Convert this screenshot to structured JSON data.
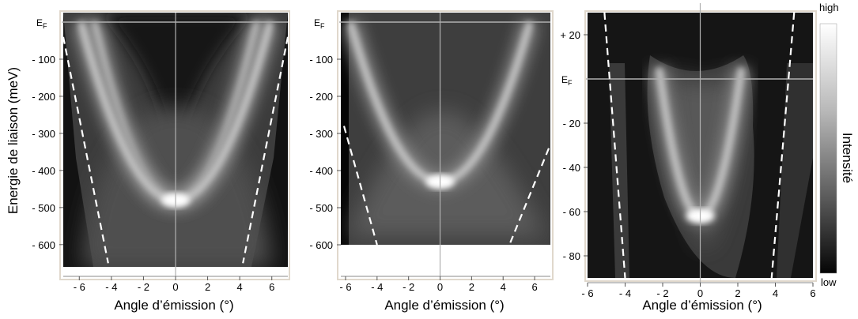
{
  "chart_data": [
    {
      "type": "heatmap",
      "title": "",
      "xlabel": "Angle d’émission (°)",
      "ylabel": "Energie de liaison (meV)",
      "xlim": [
        -7,
        7
      ],
      "ylim": [
        -660,
        0
      ],
      "x_ticks": [
        "- 6",
        "- 4",
        "- 2",
        "0",
        "2",
        "4",
        "6"
      ],
      "x_tick_values": [
        -6,
        -4,
        -2,
        0,
        2,
        4,
        6
      ],
      "y_ticks": [
        "- 100",
        "- 200",
        "- 300",
        "- 400",
        "- 500",
        "- 600"
      ],
      "y_tick_values": [
        -100,
        -200,
        -300,
        -400,
        -500,
        -600
      ],
      "fermi_label": "E",
      "fermi_subscript": "F",
      "fermi_level": 0,
      "band_minimum": {
        "angle": 0,
        "energy": -480
      },
      "band_split_at_ef": 0.4,
      "band_top_angle": 5.5,
      "dashed_boundaries": [
        {
          "x": [
            -7,
            -4.2
          ],
          "y": [
            -40,
            -650
          ]
        },
        {
          "x": [
            7,
            4.2
          ],
          "y": [
            -40,
            -650
          ]
        }
      ]
    },
    {
      "type": "heatmap",
      "title": "",
      "xlabel": "Angle d’émission (°)",
      "ylabel": "",
      "xlim": [
        -6.3,
        7
      ],
      "ylim": [
        -600,
        0
      ],
      "x_ticks": [
        "- 6",
        "- 4",
        "- 2",
        "0",
        "2",
        "4",
        "6"
      ],
      "x_tick_values": [
        -6,
        -4,
        -2,
        0,
        2,
        4,
        6
      ],
      "y_ticks": [
        "- 100",
        "- 200",
        "- 300",
        "- 400",
        "- 500",
        "- 600"
      ],
      "y_tick_values": [
        -100,
        -200,
        -300,
        -400,
        -500,
        -600
      ],
      "fermi_label": "E",
      "fermi_subscript": "F",
      "fermi_level": 0,
      "band_minimum": {
        "angle": 0,
        "energy": -430
      },
      "band_top_angle": 5.7,
      "dashed_boundaries": [
        {
          "x": [
            -6.1,
            -4
          ],
          "y": [
            -280,
            -600
          ]
        },
        {
          "x": [
            6.9,
            4.4
          ],
          "y": [
            -340,
            -600
          ]
        }
      ]
    },
    {
      "type": "heatmap",
      "title": "",
      "xlabel": "Angle d’émission (°)",
      "ylabel": "",
      "xlim": [
        -6,
        6
      ],
      "ylim": [
        -90,
        30
      ],
      "x_ticks": [
        "- 6",
        "- 4",
        "- 2",
        "0",
        "2",
        "4",
        "6"
      ],
      "x_tick_values": [
        -6,
        -4,
        -2,
        0,
        2,
        4,
        6
      ],
      "y_ticks": [
        "+ 20",
        "- 20",
        "- 40",
        "- 60",
        "- 80"
      ],
      "y_tick_values": [
        20,
        -20,
        -40,
        -60,
        -80
      ],
      "fermi_label": "E",
      "fermi_subscript": "F",
      "fermi_level": 0,
      "band_minimum": {
        "angle": 0,
        "energy": -62
      },
      "band_top_angle": 2.2,
      "band_top_energy": 5,
      "dashed_boundaries": [
        {
          "x": [
            -5.1,
            -4
          ],
          "y": [
            30,
            -90
          ]
        },
        {
          "x": [
            5,
            3.8
          ],
          "y": [
            30,
            -90
          ]
        }
      ]
    }
  ],
  "colorbar": {
    "high_label": "high",
    "low_label": "low",
    "title": "Intensité"
  }
}
